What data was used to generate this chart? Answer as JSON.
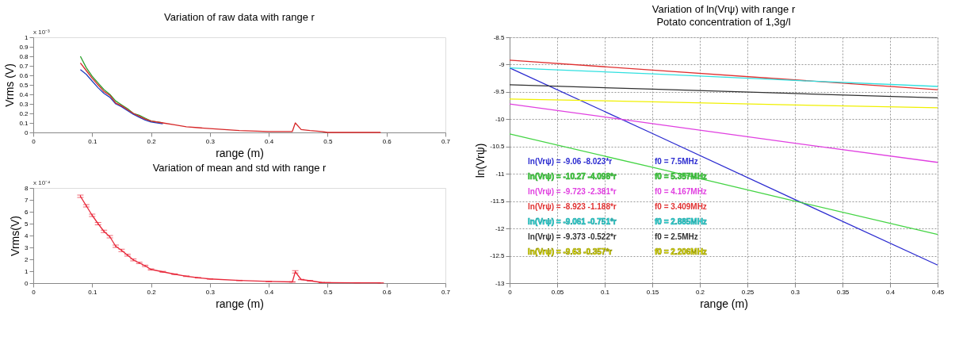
{
  "chart_data": [
    {
      "type": "line",
      "title": "Variation of raw data with range r",
      "xlabel": "range (m)",
      "ylabel": "Vrms (V)",
      "annotations": [
        "x 10⁻³"
      ],
      "grid": false,
      "xlim": [
        0,
        0.7
      ],
      "xticks": [
        0,
        0.1,
        0.2,
        0.3,
        0.4,
        0.5,
        0.6,
        0.7
      ],
      "ylim": [
        0,
        1
      ],
      "yticks": [
        0,
        0.1,
        0.2,
        0.3,
        0.4,
        0.5,
        0.6,
        0.7,
        0.8,
        0.9,
        1
      ],
      "x": [
        0.08,
        0.09,
        0.1,
        0.11,
        0.12,
        0.13,
        0.14,
        0.15,
        0.16,
        0.17,
        0.18,
        0.19,
        0.2,
        0.22,
        0.24,
        0.26,
        0.28,
        0.3,
        0.35,
        0.4,
        0.44,
        0.445,
        0.455,
        0.47,
        0.49,
        0.5,
        0.55,
        0.59
      ],
      "series": [
        {
          "color": "#2ca02c",
          "values": [
            0.8,
            0.68,
            0.59,
            0.52,
            0.45,
            0.4,
            0.33,
            0.29,
            0.25,
            0.2,
            0.18,
            0.15,
            0.12,
            0.1,
            null,
            null,
            null,
            null,
            null,
            null,
            null,
            null,
            null,
            null,
            null,
            null,
            null,
            null
          ]
        },
        {
          "color": "#1f3fbf",
          "values": [
            0.66,
            0.61,
            0.54,
            0.47,
            0.41,
            0.37,
            0.3,
            0.27,
            0.23,
            0.19,
            0.16,
            0.13,
            0.11,
            0.09,
            null,
            null,
            null,
            null,
            null,
            null,
            null,
            null,
            null,
            null,
            null,
            null,
            null,
            null
          ]
        },
        {
          "color": "#d62728",
          "values": [
            0.73,
            0.65,
            0.57,
            0.5,
            0.43,
            0.39,
            0.31,
            0.28,
            0.24,
            0.2,
            0.17,
            0.14,
            0.12,
            0.1,
            0.08,
            0.06,
            0.05,
            0.04,
            0.02,
            0.01,
            0.01,
            0.1,
            0.03,
            0.02,
            0.01,
            0,
            0,
            0
          ]
        }
      ]
    },
    {
      "type": "line",
      "title": "Variation of mean and std with range r",
      "xlabel": "range (m)",
      "ylabel": "Vrms(V)",
      "annotations": [
        "x 10⁻⁴"
      ],
      "grid": false,
      "xlim": [
        0,
        0.7
      ],
      "xticks": [
        0,
        0.1,
        0.2,
        0.3,
        0.4,
        0.5,
        0.6,
        0.7
      ],
      "ylim": [
        0,
        8
      ],
      "yticks": [
        0,
        1,
        2,
        3,
        4,
        5,
        6,
        7,
        8
      ],
      "x": [
        0.08,
        0.09,
        0.1,
        0.11,
        0.12,
        0.13,
        0.14,
        0.15,
        0.16,
        0.17,
        0.18,
        0.19,
        0.2,
        0.22,
        0.24,
        0.26,
        0.28,
        0.3,
        0.35,
        0.4,
        0.44,
        0.445,
        0.455,
        0.47,
        0.49,
        0.5,
        0.55,
        0.59
      ],
      "series": [
        {
          "color": "#e8283a",
          "values": [
            7.3,
            6.5,
            5.7,
            5.0,
            4.35,
            3.9,
            3.1,
            2.75,
            2.35,
            1.95,
            1.7,
            1.45,
            1.15,
            0.95,
            0.75,
            0.58,
            0.45,
            0.35,
            0.22,
            0.14,
            0.1,
            0.95,
            0.3,
            0.2,
            0.05,
            0.04,
            0.03,
            0.02
          ],
          "errors": [
            0.1,
            0.1,
            0.1,
            0.1,
            0.1,
            0.1,
            0.1,
            0.1,
            0.08,
            0.08,
            0.06,
            0.06,
            0.05,
            0.04,
            0.03,
            0.03,
            0.02,
            0.02,
            0.02,
            0.02,
            0.02,
            0.1,
            0.02,
            0.02,
            0.01,
            0.01,
            0.01,
            0.01
          ]
        }
      ]
    },
    {
      "type": "line",
      "title": "Variation of ln(Vrψ) with range r",
      "subtitle": "Potato concentration of 1,3g/l",
      "xlabel": "range (m)",
      "ylabel": "ln(Vrψ)",
      "grid": true,
      "legend": "bottom left",
      "xlim": [
        0,
        0.45
      ],
      "xticks": [
        0,
        0.05,
        0.1,
        0.15,
        0.2,
        0.25,
        0.3,
        0.35,
        0.4,
        0.45
      ],
      "ylim": [
        -13,
        -8.5
      ],
      "yticks": [
        -13,
        -12.5,
        -12,
        -11.5,
        -11,
        -10.5,
        -10,
        -9.5,
        -9,
        -8.5
      ],
      "annotations": [
        "f0 = 7.5MHz",
        "f0 = 5.357MHz",
        "f0 = 4.167MHz",
        "f0 = 3.409MHz",
        "f0 = 2.885MHz",
        "f0 = 2.5MHz",
        "f0 = 2.206MHz"
      ],
      "x": [
        0,
        0.15,
        0.3,
        0.45
      ],
      "series": [
        {
          "name": "ln(Vrψ) = -9.06 -8.023*r",
          "color": "#2b2bd0",
          "values": [
            -9.06,
            -10.26,
            -11.47,
            -12.67
          ]
        },
        {
          "name": "ln(Vrψ) = -10.27 -4.098*r",
          "color": "#44d444",
          "values": [
            -10.27,
            -10.88,
            -11.5,
            -12.11
          ]
        },
        {
          "name": "ln(Vrψ) = -9.723 -2.381*r",
          "color": "#e040e0",
          "values": [
            -9.72,
            -10.08,
            -10.44,
            -10.79
          ]
        },
        {
          "name": "ln(Vrψ) = -8.923 -1.188*r",
          "color": "#e03030",
          "values": [
            -8.92,
            -9.1,
            -9.28,
            -9.46
          ]
        },
        {
          "name": "ln(Vrψ) = -9.061 -0.751*r",
          "color": "#30e0e0",
          "values": [
            -9.06,
            -9.17,
            -9.29,
            -9.4
          ]
        },
        {
          "name": "ln(Vrψ) = -9.373 -0.522*r",
          "color": "#303030",
          "values": [
            -9.37,
            -9.45,
            -9.53,
            -9.61
          ]
        },
        {
          "name": "ln(Vrψ) = -9.63 -0.357*r",
          "color": "#f0f000",
          "values": [
            -9.63,
            -9.68,
            -9.74,
            -9.79
          ]
        }
      ]
    }
  ]
}
